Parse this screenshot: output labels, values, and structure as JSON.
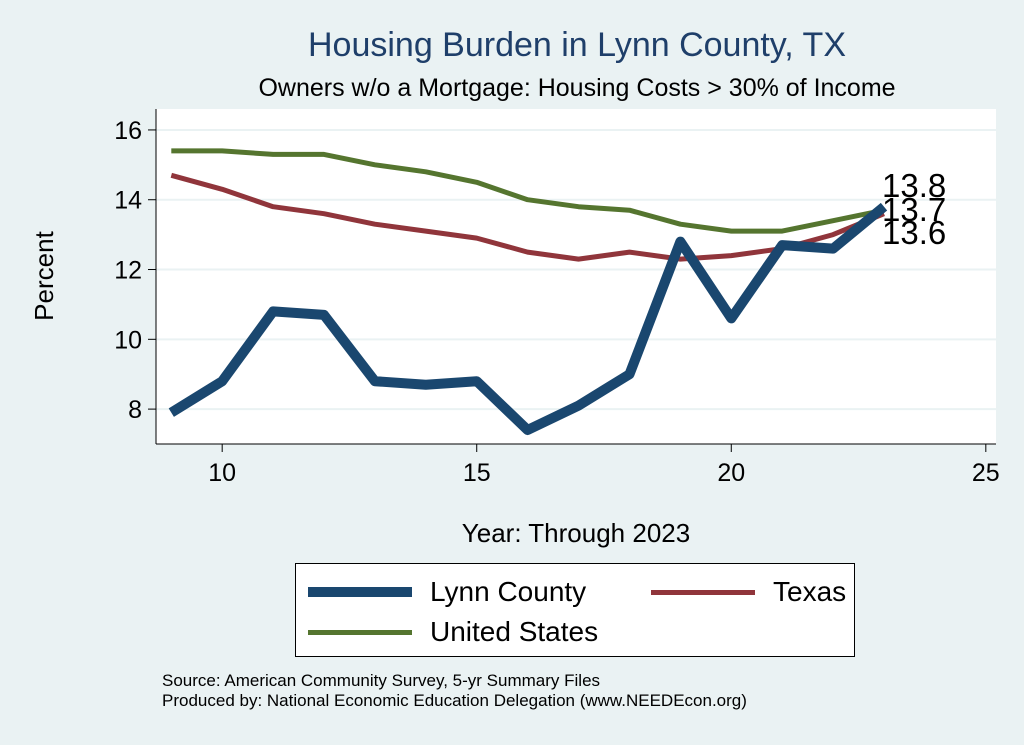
{
  "chart_data": {
    "type": "line",
    "title": "Housing Burden in Lynn County, TX",
    "subtitle": "Owners w/o a Mortgage: Housing Costs > 30% of Income",
    "xlabel": "Year: Through 2023",
    "ylabel": "Percent",
    "xlim": [
      8.7,
      25.2
    ],
    "ylim": [
      7.0,
      16.6
    ],
    "xticks": [
      10,
      15,
      20,
      25
    ],
    "yticks": [
      8,
      10,
      12,
      14,
      16
    ],
    "grid": true,
    "legend_position": "bottom",
    "series": [
      {
        "name": "Lynn County",
        "color": "#1a476f",
        "x": [
          9,
          10,
          11,
          12,
          13,
          14,
          15,
          16,
          17,
          18,
          19,
          20,
          21,
          22,
          23
        ],
        "values": [
          7.9,
          8.8,
          10.8,
          10.7,
          8.8,
          8.7,
          8.8,
          7.4,
          8.1,
          9.0,
          12.8,
          10.6,
          12.7,
          12.6,
          13.8
        ]
      },
      {
        "name": "Texas",
        "color": "#90353b",
        "x": [
          9,
          10,
          11,
          12,
          13,
          14,
          15,
          16,
          17,
          18,
          19,
          20,
          21,
          22,
          23
        ],
        "values": [
          14.7,
          14.3,
          13.8,
          13.6,
          13.3,
          13.1,
          12.9,
          12.5,
          12.3,
          12.5,
          12.3,
          12.4,
          12.6,
          13.0,
          13.6
        ]
      },
      {
        "name": "United States",
        "color": "#55752f",
        "x": [
          9,
          10,
          11,
          12,
          13,
          14,
          15,
          16,
          17,
          18,
          19,
          20,
          21,
          22,
          23
        ],
        "values": [
          15.4,
          15.4,
          15.3,
          15.3,
          15.0,
          14.8,
          14.5,
          14.0,
          13.8,
          13.7,
          13.3,
          13.1,
          13.1,
          13.4,
          13.7
        ]
      }
    ],
    "end_labels": [
      "13.8",
      "13.7",
      "13.6"
    ]
  },
  "source": {
    "line1": "Source: American Community Survey, 5-yr Summary Files",
    "line2": "Produced by: National Economic Education Delegation (www.NEEDEcon.org)"
  }
}
